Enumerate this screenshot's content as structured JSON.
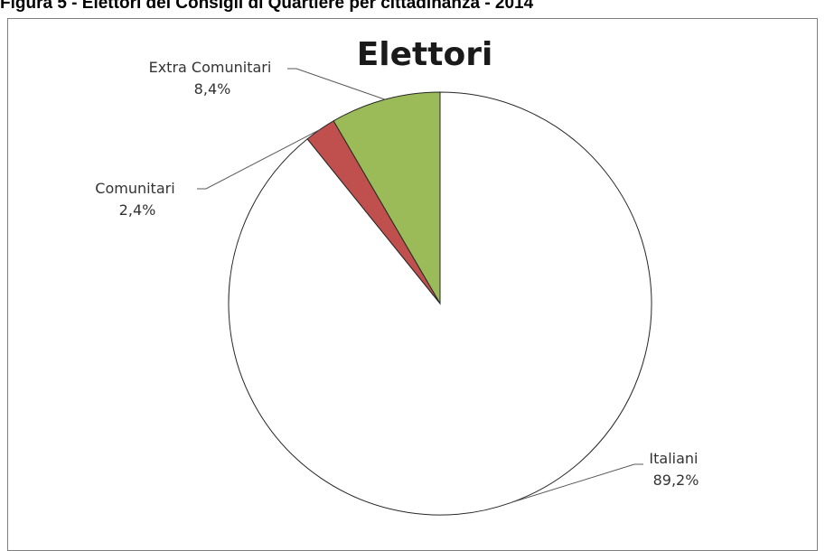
{
  "figure": {
    "caption": "Figura 5 - Elettori dei Consigli di Quartiere per cittadinanza - 2014"
  },
  "chart_data": {
    "type": "pie",
    "title": "Elettori",
    "start": "12 o'clock",
    "direction": "clockwise",
    "legend": "none",
    "slices": [
      {
        "label": "Italiani",
        "value": 89.2,
        "value_label": "89,2%",
        "color": "#ffffff"
      },
      {
        "label": "Comunitari",
        "value": 2.4,
        "value_label": "2,4%",
        "color": "#c0504d"
      },
      {
        "label": "Extra Comunitari",
        "value": 8.4,
        "value_label": "8,4%",
        "color": "#9bbb59"
      }
    ]
  }
}
